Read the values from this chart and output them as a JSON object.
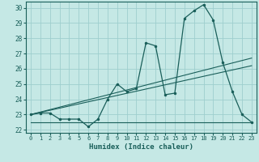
{
  "xlabel": "Humidex (Indice chaleur)",
  "bg_color": "#c5e8e5",
  "grid_color": "#9ecece",
  "line_color": "#1a5f5a",
  "xlim": [
    -0.5,
    23.5
  ],
  "ylim": [
    21.8,
    30.4
  ],
  "xticks": [
    0,
    1,
    2,
    3,
    4,
    5,
    6,
    7,
    8,
    9,
    10,
    11,
    12,
    13,
    14,
    15,
    16,
    17,
    18,
    19,
    20,
    21,
    22,
    23
  ],
  "yticks": [
    22,
    23,
    24,
    25,
    26,
    27,
    28,
    29,
    30
  ],
  "main_y": [
    23.0,
    23.1,
    23.1,
    22.7,
    22.7,
    22.7,
    22.2,
    22.7,
    24.0,
    25.0,
    24.5,
    24.7,
    27.7,
    27.5,
    24.3,
    24.4,
    29.3,
    29.8,
    30.2,
    29.2,
    26.4,
    24.5,
    23.0,
    22.5
  ],
  "trend1_x": [
    0,
    23
  ],
  "trend1_y": [
    23.0,
    26.7
  ],
  "trend2_x": [
    0,
    23
  ],
  "trend2_y": [
    23.0,
    26.2
  ],
  "trend3_x": [
    0,
    23
  ],
  "trend3_y": [
    22.5,
    22.5
  ]
}
